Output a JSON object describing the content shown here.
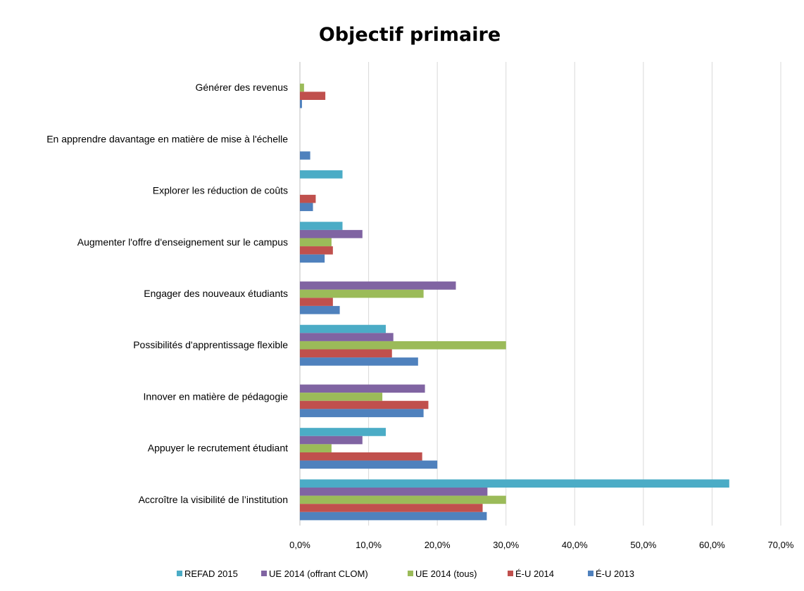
{
  "colors": {
    "REFAD 2015": "#4bacc6",
    "UE 2014 (offrant CLOM)": "#8064a2",
    "UE 2014 (tous)": "#9bbb59",
    "É-U 2014": "#c0504d",
    "É-U 2013": "#4f81bd"
  },
  "chart_data": {
    "type": "bar",
    "orientation": "horizontal",
    "title": "Objectif primaire",
    "xlabel": "",
    "ylabel": "",
    "xlim": [
      0,
      70
    ],
    "tick_values": [
      0,
      10,
      20,
      30,
      40,
      50,
      60,
      70
    ],
    "tick_labels": [
      "0,0%",
      "10,0%",
      "20,0%",
      "30,0%",
      "40,0%",
      "50,0%",
      "60,0%",
      "70,0%"
    ],
    "grid": true,
    "legend_position": "bottom",
    "categories": [
      "Générer des revenus",
      "En apprendre davantage en matière de mise à l'échelle",
      "Explorer les réduction de coûts",
      "Augmenter l'offre d'enseignement sur le campus",
      "Engager des nouveaux étudiants",
      "Possibilités d'apprentissage flexible",
      "Innover en matière de pédagogie",
      "Appuyer le recrutement étudiant",
      "Accroître la visibilité de l’institution"
    ],
    "series": [
      {
        "name": "REFAD 2015",
        "values": [
          0,
          0,
          6.2,
          6.2,
          0,
          12.5,
          0,
          12.5,
          62.5
        ]
      },
      {
        "name": "UE 2014 (offrant CLOM)",
        "values": [
          0,
          0,
          0,
          9.1,
          22.7,
          13.6,
          18.2,
          9.1,
          27.3
        ]
      },
      {
        "name": "UE 2014 (tous)",
        "values": [
          0.6,
          0,
          0,
          4.6,
          18.0,
          30.0,
          12.0,
          4.6,
          30.0
        ]
      },
      {
        "name": "É-U 2014",
        "values": [
          3.7,
          0,
          2.3,
          4.8,
          4.8,
          13.4,
          18.7,
          17.8,
          26.6
        ]
      },
      {
        "name": "É-U 2013",
        "values": [
          0.3,
          1.5,
          1.9,
          3.6,
          5.8,
          17.2,
          18.0,
          20.0,
          27.2
        ]
      }
    ]
  }
}
